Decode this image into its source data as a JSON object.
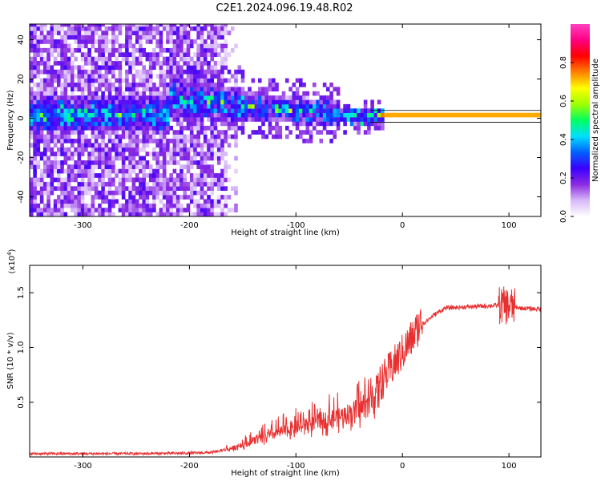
{
  "figure": {
    "title": "C2E1.2024.096.19.48.R02"
  },
  "chart_data": [
    {
      "type": "heatmap",
      "xlabel": "Height of straight line (km)",
      "ylabel": "Frequency (Hz)",
      "xlim": [
        -350,
        130
      ],
      "ylim": [
        -50,
        48
      ],
      "x_ticks": [
        -300,
        -200,
        -100,
        0,
        100
      ],
      "x_tick_labels": [
        "-300",
        "-200",
        "-100",
        "0",
        "100"
      ],
      "y_ticks": [
        40,
        20,
        0,
        -20,
        -40
      ],
      "y_tick_labels": [
        "40",
        "20",
        "0",
        "-20",
        "-40"
      ],
      "colorbar": {
        "label": "Normalized spectral amplitude",
        "range": [
          0,
          1
        ],
        "ticks": [
          0.0,
          0.2,
          0.4,
          0.6,
          0.8
        ],
        "tick_labels": [
          "0.0",
          "0.2",
          "0.4",
          "0.6",
          "0.8"
        ],
        "colors": [
          "#ffffff",
          "#d8b8f8",
          "#8a2be2",
          "#3a00ff",
          "#0060ff",
          "#00e0ff",
          "#00ff60",
          "#a0ff00",
          "#ffff00",
          "#ff8000",
          "#ff0000",
          "#ff0080",
          "#ff40c0"
        ]
      },
      "ridge_center_x": [
        -220,
        -200,
        -170,
        -150,
        -120,
        -100,
        -80,
        -60,
        -50,
        -40,
        -30,
        -20,
        0,
        30,
        60,
        100,
        130
      ],
      "ridge_center_y": [
        10,
        8,
        7,
        5,
        4,
        3,
        2,
        1,
        0,
        -1,
        0,
        1,
        1,
        1,
        1,
        1,
        1
      ],
      "noise_region_x": [
        -350,
        -165
      ]
    },
    {
      "type": "line",
      "xlabel": "Height of straight line (km)",
      "ylabel": "SNR (10 * v/v)",
      "y_multiplier_label": "(x10",
      "y_multiplier_exponent": "4",
      "y_multiplier_close": ")",
      "xlim": [
        -350,
        130
      ],
      "ylim": [
        0,
        17500
      ],
      "x_ticks": [
        -300,
        -200,
        -100,
        0,
        100
      ],
      "x_tick_labels": [
        "-300",
        "-200",
        "-100",
        "0",
        "100"
      ],
      "y_ticks": [
        5000,
        10000,
        15000
      ],
      "y_tick_labels": [
        "0.5",
        "1.0",
        "1.5"
      ],
      "series": [
        {
          "color": "#e83030",
          "x": [
            -350,
            -300,
            -250,
            -200,
            -180,
            -160,
            -140,
            -120,
            -100,
            -80,
            -60,
            -40,
            -30,
            -20,
            0,
            10,
            20,
            30,
            40,
            60,
            80,
            90,
            100,
            110,
            130
          ],
          "y": [
            300,
            300,
            300,
            350,
            400,
            700,
            1300,
            1900,
            2400,
            2900,
            3300,
            3900,
            4400,
            6300,
            9000,
            10500,
            12200,
            13000,
            13600,
            13700,
            13800,
            13850,
            13800,
            13600,
            13500
          ]
        }
      ]
    }
  ]
}
